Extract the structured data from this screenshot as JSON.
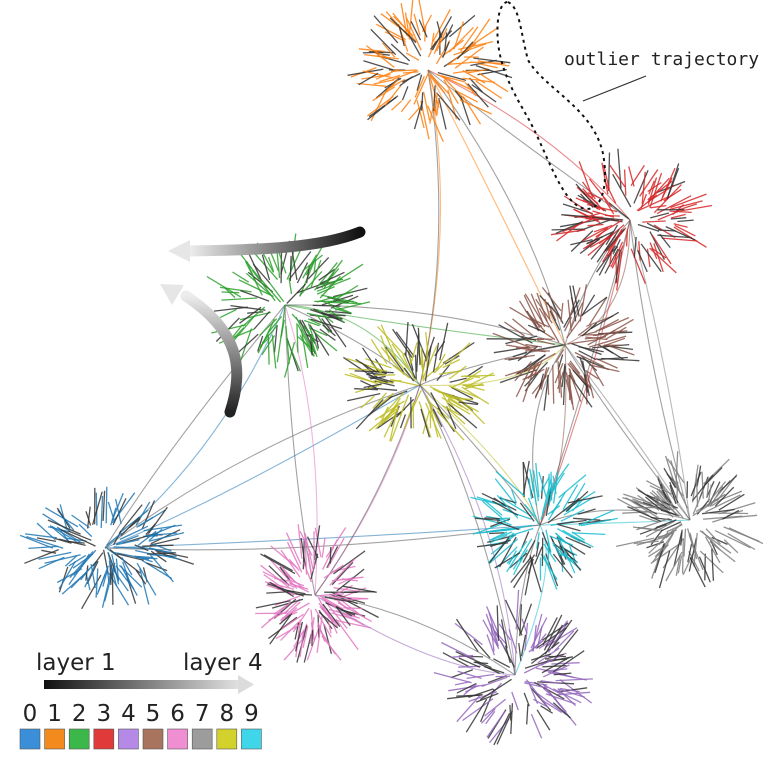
{
  "annotation": {
    "outlier_label": "outlier trajectory"
  },
  "layer_legend": {
    "start_label": "layer 1",
    "end_label": "layer 4"
  },
  "class_legend": [
    {
      "digit": "0",
      "color": "#3a8fd8"
    },
    {
      "digit": "1",
      "color": "#f28a1e"
    },
    {
      "digit": "2",
      "color": "#3cb84a"
    },
    {
      "digit": "3",
      "color": "#e03a3a"
    },
    {
      "digit": "4",
      "color": "#b48ae6"
    },
    {
      "digit": "5",
      "color": "#a8745e"
    },
    {
      "digit": "6",
      "color": "#f08ed2"
    },
    {
      "digit": "7",
      "color": "#9c9c9c"
    },
    {
      "digit": "8",
      "color": "#d3d12c"
    },
    {
      "digit": "9",
      "color": "#3fd6ea"
    }
  ],
  "clusters": [
    {
      "class": "0",
      "color": "#1f77b4"
    },
    {
      "class": "1",
      "color": "#ff7f0e"
    },
    {
      "class": "2",
      "color": "#2ca02c"
    },
    {
      "class": "3",
      "color": "#d62728"
    },
    {
      "class": "4",
      "color": "#9467bd"
    },
    {
      "class": "5",
      "color": "#8c564b"
    },
    {
      "class": "6",
      "color": "#e377c2"
    },
    {
      "class": "7",
      "color": "#7f7f7f"
    },
    {
      "class": "8",
      "color": "#bcbd22"
    },
    {
      "class": "9",
      "color": "#17becf"
    }
  ]
}
